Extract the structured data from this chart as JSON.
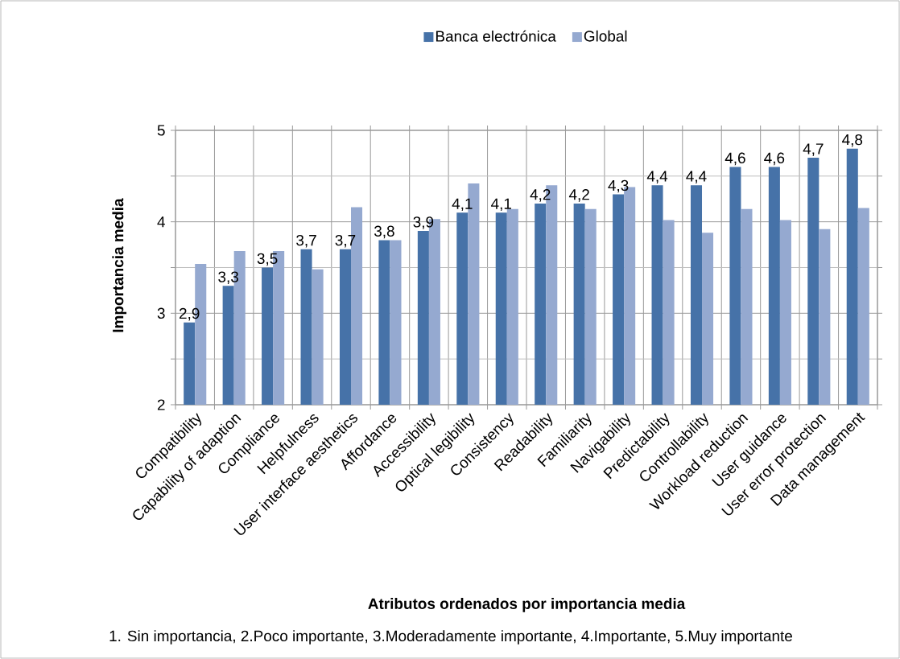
{
  "chart_data": {
    "type": "bar",
    "xlabel": "Atributos ordenados por importancia media",
    "ylabel": "Importancia media",
    "categories": [
      "Compatibility",
      "Capability of adaption",
      "Compliance",
      "Helpfulness",
      "User interface aesthetics",
      "Affordance",
      "Accessibility",
      "Optical legibility",
      "Consistency",
      "Readability",
      "Familiarity",
      "Navigability",
      "Predictability",
      "Controllability",
      "Workload reduction",
      "User guidance",
      "User error protection",
      "Data management"
    ],
    "series": [
      {
        "name": "Banca electrónica",
        "color": "#4672a8",
        "values": [
          2.9,
          3.3,
          3.5,
          3.7,
          3.7,
          3.8,
          3.9,
          4.1,
          4.1,
          4.2,
          4.2,
          4.3,
          4.4,
          4.4,
          4.6,
          4.6,
          4.7,
          4.8
        ],
        "value_labels": [
          "2,9",
          "3,3",
          "3,5",
          "3,7",
          "3,7",
          "3,8",
          "3,9",
          "4,1",
          "4,1",
          "4,2",
          "4,2",
          "4,3",
          "4,4",
          "4,4",
          "4,6",
          "4,6",
          "4,7",
          "4,8"
        ]
      },
      {
        "name": "Global",
        "color": "#95a9d0",
        "values": [
          3.54,
          3.68,
          3.68,
          3.48,
          4.16,
          3.8,
          4.03,
          4.42,
          4.14,
          4.4,
          4.14,
          4.38,
          4.02,
          3.88,
          4.14,
          4.02,
          3.92,
          4.15
        ]
      }
    ],
    "ylim": [
      2,
      5
    ],
    "yticks": [
      2,
      3,
      4,
      5
    ],
    "grid": true,
    "legend": "top",
    "annotations": [
      "1. Sin importancia, 2.Poco importante, 3.Moderadamente importante,  4.Importante, 5.Muy importante"
    ]
  }
}
